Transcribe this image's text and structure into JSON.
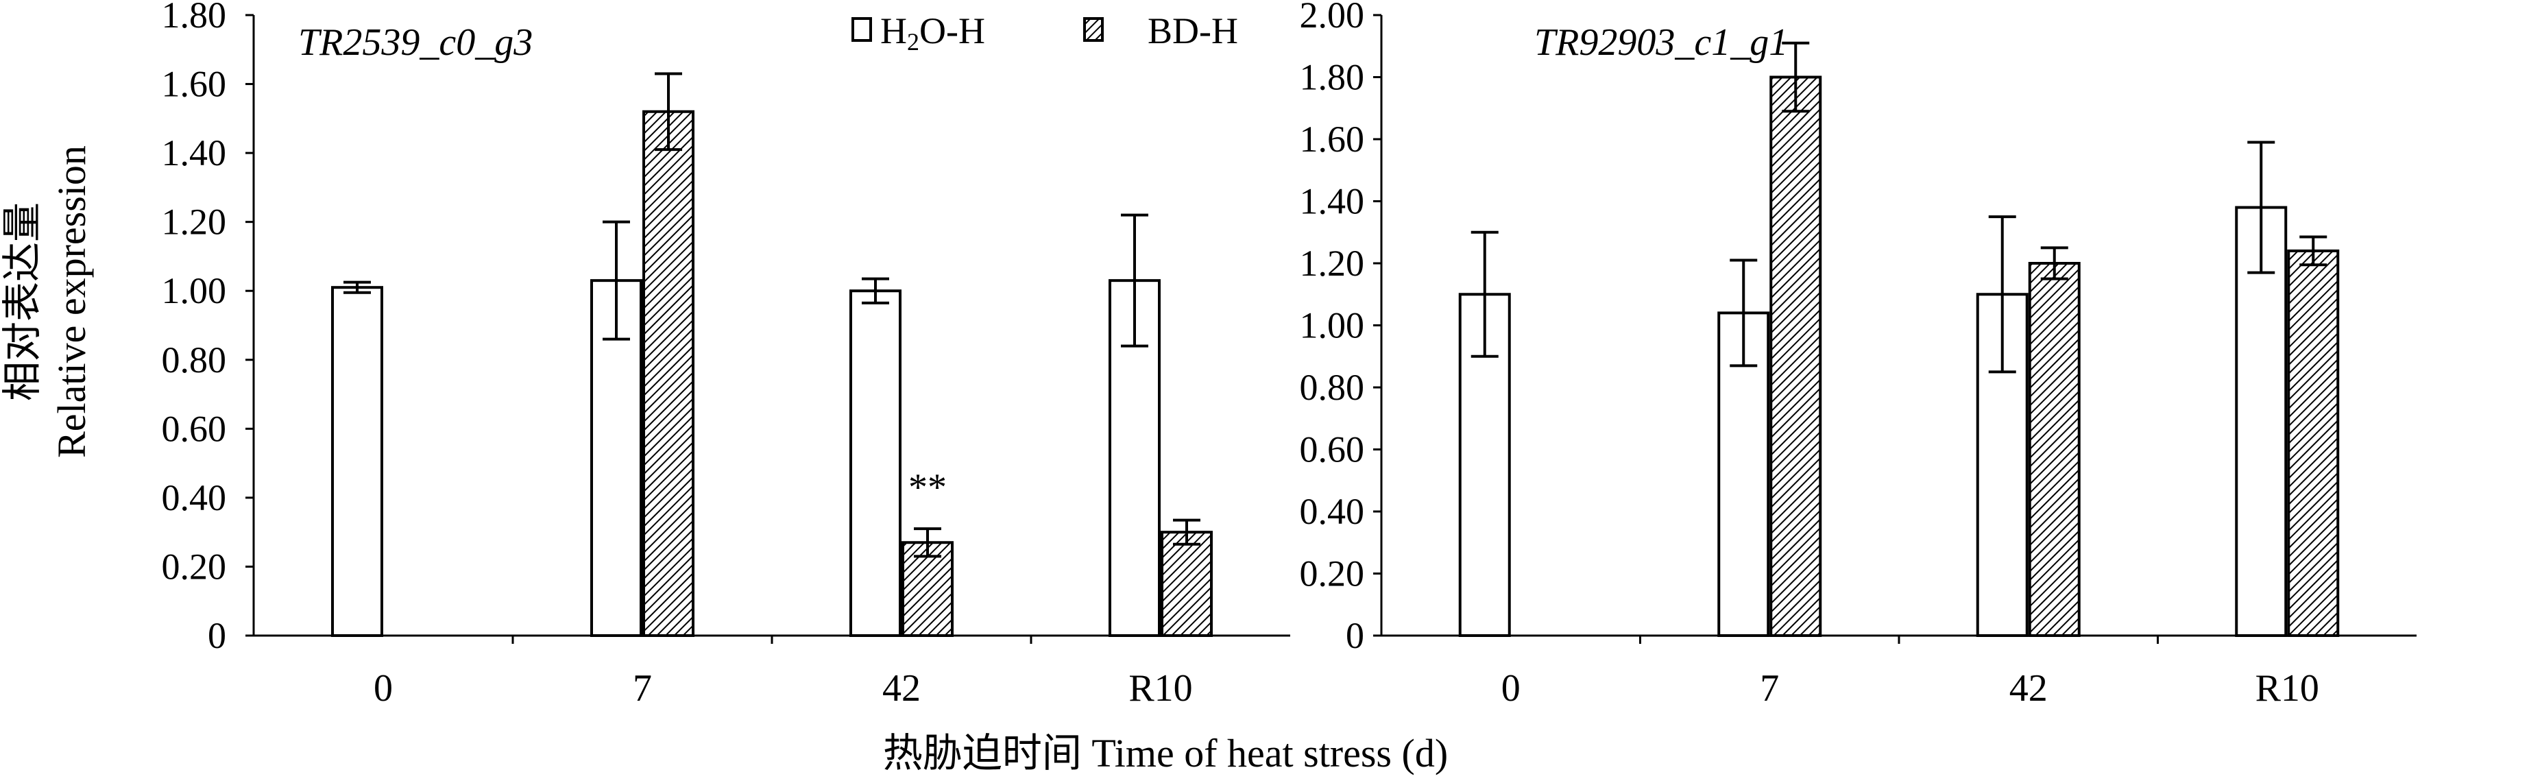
{
  "figure": {
    "x_axis_label": "热胁迫时间 Time of heat stress (d)",
    "y_axis_label_cn": "相对表达量",
    "y_axis_label_en": "Relative expression",
    "colors": {
      "axis": "#000000",
      "bar_fill": "#ffffff",
      "hatch": "#000000"
    }
  },
  "legend": {
    "items": [
      {
        "label_main": "H",
        "label_sub": "2",
        "label_rest": "O-H",
        "pattern": "open"
      },
      {
        "label_main": "BD-H",
        "label_sub": "",
        "label_rest": "",
        "pattern": "hatched"
      }
    ]
  },
  "chart_data": [
    {
      "type": "bar",
      "title": "TR2539_c0_g3",
      "categories": [
        "0",
        "7",
        "42",
        "R10"
      ],
      "ylim": [
        0,
        1.8
      ],
      "yticks": [
        "0",
        "0.20",
        "0.40",
        "0.60",
        "0.80",
        "1.00",
        "1.20",
        "1.40",
        "1.60",
        "1.80"
      ],
      "series": [
        {
          "name": "H2O-H",
          "pattern": "open",
          "values": [
            1.01,
            1.03,
            1.0,
            1.03
          ],
          "errors": [
            0.015,
            0.17,
            0.035,
            0.19
          ]
        },
        {
          "name": "BD-H",
          "pattern": "hatched",
          "values": [
            null,
            1.52,
            0.27,
            0.3
          ],
          "errors": [
            null,
            0.11,
            0.04,
            0.035
          ]
        }
      ],
      "annotations": [
        {
          "text": "**",
          "series": 1,
          "category": 2
        }
      ]
    },
    {
      "type": "bar",
      "title": "TR92903_c1_g1",
      "categories": [
        "0",
        "7",
        "42",
        "R10"
      ],
      "ylim": [
        0,
        2.0
      ],
      "yticks": [
        "0",
        "0.20",
        "0.40",
        "0.60",
        "0.80",
        "1.00",
        "1.20",
        "1.40",
        "1.60",
        "1.80",
        "2.00"
      ],
      "series": [
        {
          "name": "H2O-H",
          "pattern": "open",
          "values": [
            1.1,
            1.04,
            1.1,
            1.38
          ],
          "errors": [
            0.2,
            0.17,
            0.25,
            0.21
          ]
        },
        {
          "name": "BD-H",
          "pattern": "hatched",
          "values": [
            null,
            1.8,
            1.2,
            1.24
          ],
          "errors": [
            null,
            0.11,
            0.05,
            0.045
          ]
        }
      ],
      "annotations": []
    }
  ]
}
